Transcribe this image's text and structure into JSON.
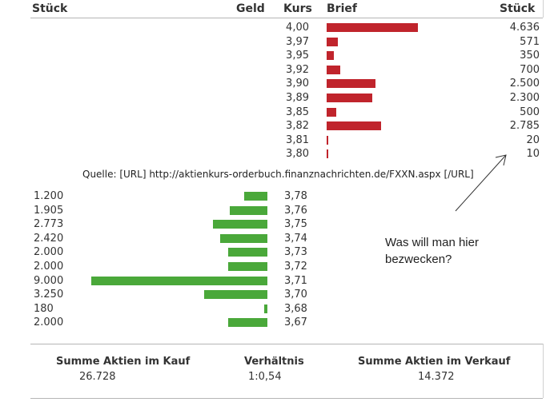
{
  "header": {
    "col_stueck_left": "Stück",
    "col_geld": "Geld",
    "col_kurs": "Kurs",
    "col_brief": "Brief",
    "col_stueck_right": "Stück"
  },
  "sell_orders": [
    {
      "kurs": "4,00",
      "stueck": "4.636",
      "value": 4636
    },
    {
      "kurs": "3,97",
      "stueck": "571",
      "value": 571
    },
    {
      "kurs": "3,95",
      "stueck": "350",
      "value": 350
    },
    {
      "kurs": "3,92",
      "stueck": "700",
      "value": 700
    },
    {
      "kurs": "3,90",
      "stueck": "2.500",
      "value": 2500
    },
    {
      "kurs": "3,89",
      "stueck": "2.300",
      "value": 2300
    },
    {
      "kurs": "3,85",
      "stueck": "500",
      "value": 500
    },
    {
      "kurs": "3,82",
      "stueck": "2.785",
      "value": 2785
    },
    {
      "kurs": "3,81",
      "stueck": "20",
      "value": 20
    },
    {
      "kurs": "3,80",
      "stueck": "10",
      "value": 10
    }
  ],
  "source_line": "Quelle: [URL] http://aktienkurs-orderbuch.finanznachrichten.de/FXXN.aspx [/URL]",
  "buy_orders": [
    {
      "stueck": "1.200",
      "kurs": "3,78",
      "value": 1200
    },
    {
      "stueck": "1.905",
      "kurs": "3,76",
      "value": 1905
    },
    {
      "stueck": "2.773",
      "kurs": "3,75",
      "value": 2773
    },
    {
      "stueck": "2.420",
      "kurs": "3,74",
      "value": 2420
    },
    {
      "stueck": "2.000",
      "kurs": "3,73",
      "value": 2000
    },
    {
      "stueck": "2.000",
      "kurs": "3,72",
      "value": 2000
    },
    {
      "stueck": "9.000",
      "kurs": "3,71",
      "value": 9000
    },
    {
      "stueck": "3.250",
      "kurs": "3,70",
      "value": 3250
    },
    {
      "stueck": "180",
      "kurs": "3,68",
      "value": 180
    },
    {
      "stueck": "2.000",
      "kurs": "3,67",
      "value": 2000
    }
  ],
  "annotation": {
    "line1": "Was will man hier",
    "line2": "bezwecken?"
  },
  "summary": {
    "buy_label": "Summe Aktien im Kauf",
    "buy_value": "26.728",
    "ratio_label": "Verhältnis",
    "ratio_value": "1:0,54",
    "sell_label": "Summe Aktien im Verkauf",
    "sell_value": "14.372"
  },
  "colors": {
    "sell_bar": "#c0242c",
    "buy_bar": "#4aa83a"
  }
}
